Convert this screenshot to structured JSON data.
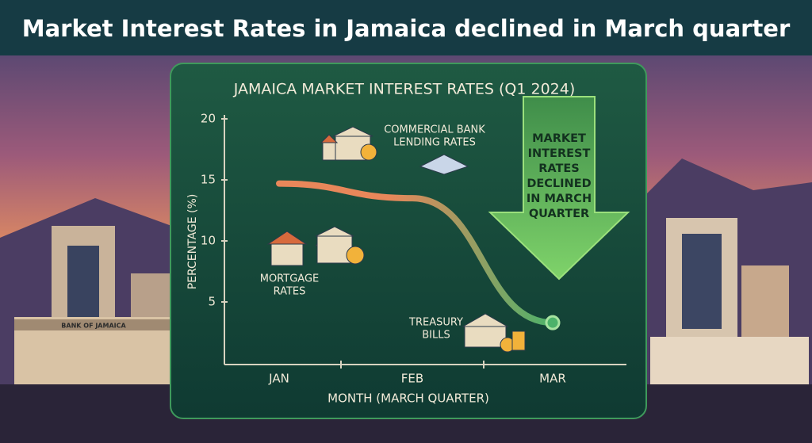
{
  "chart_data": {
    "type": "line",
    "title": "Market Interest Rates in Jamaica declined in March quarter",
    "subtitle": "JAMAICA MARKET INTEREST RATES (Q1 2024)",
    "y_label": "PERCENTAGE (%)",
    "x_label": "MONTH (MARCH QUARTER)",
    "categories": [
      "JAN",
      "FEB",
      "MAR"
    ],
    "series": [
      {
        "name": "Market interest rates",
        "color": "#e8875a",
        "values": [
          14.7,
          13.5,
          3.3
        ]
      }
    ],
    "ylim": [
      0,
      20
    ],
    "yticks": [
      5,
      10,
      15,
      20
    ],
    "annotations": [
      [
        "COMMERCIAL BANK",
        "LENDING RATES"
      ],
      [
        "MORTGAGE",
        "RATES"
      ],
      [
        "TREASURY",
        "BILLS"
      ],
      [
        "MARKET",
        "INTEREST",
        "RATES",
        "DECLINED",
        "IN MARCH",
        "QUARTER"
      ]
    ],
    "background_label": "BANK OF JAMAICA"
  }
}
